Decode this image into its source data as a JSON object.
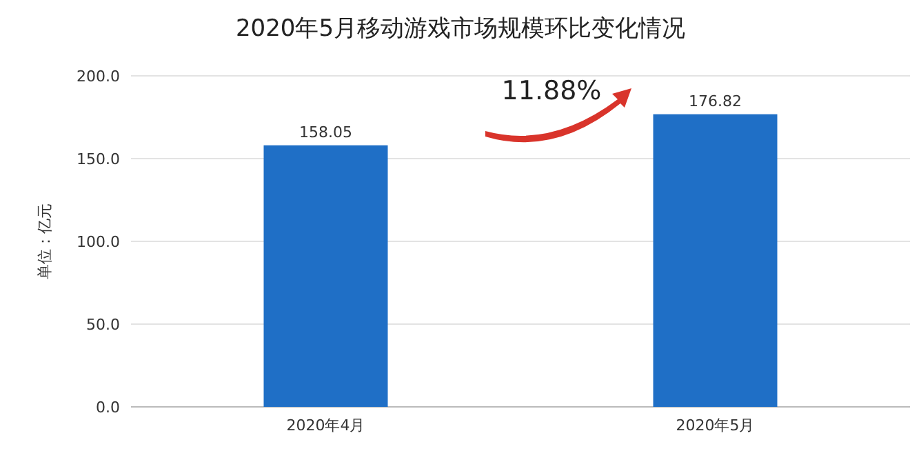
{
  "chart_data": {
    "type": "bar",
    "title": "2020年5月移动游戏市场规模环比变化情况",
    "categories": [
      "2020年4月",
      "2020年5月"
    ],
    "values": [
      158.05,
      176.82
    ],
    "color": "#1f6fc6",
    "ylabel": "单位：亿元",
    "ylim": [
      0,
      200
    ],
    "yticks": [
      {
        "value": 0,
        "label": "0.0"
      },
      {
        "value": 50,
        "label": "50.0"
      },
      {
        "value": 100,
        "label": "100.0"
      },
      {
        "value": 150,
        "label": "150.0"
      },
      {
        "value": 200,
        "label": "200.0"
      }
    ],
    "grid": "y",
    "data_labels": true,
    "annotations": [
      "11.88%"
    ]
  }
}
